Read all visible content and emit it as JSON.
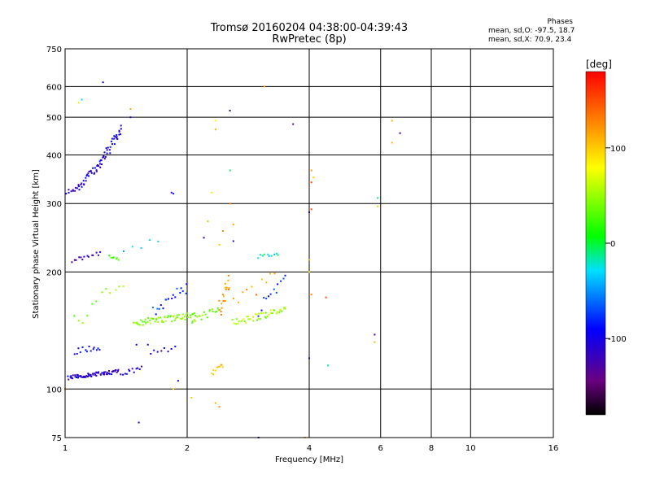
{
  "title": {
    "line1": "Tromsø 20160204 04:38:00-04:39:43",
    "line2": "RwPretec (8p)"
  },
  "phases": {
    "header": "Phases",
    "line_o": "mean, sd,O: -97.5, 18.7",
    "line_x": "mean, sd,X:  70.9, 23.4"
  },
  "chart_data": {
    "type": "scatter",
    "xlabel": "Frequency [MHz]",
    "ylabel": "Stationary phase Virtual Height [km]",
    "x_scale": "log2",
    "y_scale": "log",
    "xlim": [
      1,
      16
    ],
    "ylim": [
      75,
      750
    ],
    "x_ticks": [
      1,
      2,
      4,
      6,
      8,
      10,
      16
    ],
    "x_grid": [
      2,
      4,
      6,
      8,
      10
    ],
    "y_ticks": [
      75,
      100,
      200,
      300,
      400,
      500,
      600,
      750
    ],
    "y_grid": [
      100,
      200,
      300,
      400,
      500,
      600
    ],
    "grid": true,
    "colorbar": {
      "label": "[deg]",
      "range": [
        -180,
        180
      ],
      "ticks": [
        100,
        0,
        -100
      ]
    },
    "series": [
      {
        "traces": [
          {
            "f0": 1.02,
            "f1": 1.35,
            "h0": 107,
            "h1": 111,
            "n": 70,
            "phase": -110,
            "jit": 0.012
          },
          {
            "f0": 1.37,
            "f1": 1.55,
            "h0": 110,
            "h1": 113,
            "n": 12,
            "phase": -105,
            "jit": 0.015
          },
          {
            "f0": 1.01,
            "f1": 1.08,
            "h0": 320,
            "h1": 330,
            "n": 10,
            "phase": -110,
            "jit": 0.012
          },
          {
            "f0": 1.08,
            "f1": 1.22,
            "h0": 330,
            "h1": 380,
            "n": 30,
            "phase": -105,
            "jit": 0.025
          },
          {
            "f0": 1.22,
            "f1": 1.38,
            "h0": 380,
            "h1": 470,
            "n": 34,
            "phase": -100,
            "jit": 0.03
          },
          {
            "f0": 1.06,
            "f1": 1.22,
            "h0": 125,
            "h1": 128,
            "n": 14,
            "phase": -100,
            "jit": 0.018
          },
          {
            "f0": 1.04,
            "f1": 1.22,
            "h0": 213,
            "h1": 223,
            "n": 14,
            "phase": -115,
            "jit": 0.015
          },
          {
            "f0": 1.28,
            "f1": 1.36,
            "h0": 220,
            "h1": 216,
            "n": 7,
            "phase": 20,
            "jit": 0.012
          },
          {
            "f0": 1.62,
            "f1": 1.86,
            "h0": 125,
            "h1": 127,
            "n": 8,
            "phase": -110,
            "jit": 0.015
          },
          {
            "f0": 1.05,
            "f1": 1.4,
            "h0": 150,
            "h1": 185,
            "n": 12,
            "phase": 40,
            "jit": 0.06
          },
          {
            "f0": 1.48,
            "f1": 2.1,
            "h0": 148,
            "h1": 155,
            "n": 60,
            "phase": 45,
            "jit": 0.02
          },
          {
            "f0": 1.65,
            "f1": 2.0,
            "h0": 160,
            "h1": 185,
            "n": 18,
            "phase": -80,
            "jit": 0.04
          },
          {
            "f0": 2.05,
            "f1": 2.4,
            "h0": 150,
            "h1": 160,
            "n": 20,
            "phase": 40,
            "jit": 0.02
          },
          {
            "f0": 2.4,
            "f1": 2.55,
            "h0": 160,
            "h1": 190,
            "n": 20,
            "phase": 120,
            "jit": 0.05
          },
          {
            "f0": 2.3,
            "f1": 2.45,
            "h0": 110,
            "h1": 115,
            "n": 10,
            "phase": 100,
            "jit": 0.015
          },
          {
            "f0": 2.6,
            "f1": 3.5,
            "h0": 148,
            "h1": 160,
            "n": 45,
            "phase": 50,
            "jit": 0.02
          },
          {
            "f0": 3.0,
            "f1": 3.5,
            "h0": 160,
            "h1": 190,
            "n": 12,
            "phase": -80,
            "jit": 0.04
          },
          {
            "f0": 3.0,
            "f1": 3.35,
            "h0": 219,
            "h1": 222,
            "n": 10,
            "phase": -20,
            "jit": 0.01
          },
          {
            "f0": 2.6,
            "f1": 3.3,
            "h0": 165,
            "h1": 195,
            "n": 10,
            "phase": 120,
            "jit": 0.04
          },
          {
            "f0": 1.4,
            "f1": 1.7,
            "h0": 230,
            "h1": 240,
            "n": 5,
            "phase": -40,
            "jit": 0.02
          }
        ],
        "points": [
          [
            1.24,
            615,
            -110
          ],
          [
            1.1,
            555,
            -30
          ],
          [
            1.08,
            545,
            90
          ],
          [
            1.45,
            525,
            115
          ],
          [
            1.45,
            500,
            -110
          ],
          [
            2.35,
            490,
            80
          ],
          [
            2.35,
            465,
            110
          ],
          [
            2.55,
            520,
            -120
          ],
          [
            3.65,
            480,
            -120
          ],
          [
            3.1,
            600,
            115
          ],
          [
            2.55,
            365,
            -10
          ],
          [
            2.3,
            320,
            90
          ],
          [
            1.83,
            320,
            -110
          ],
          [
            1.85,
            318,
            -80
          ],
          [
            2.55,
            300,
            130
          ],
          [
            2.6,
            265,
            110
          ],
          [
            2.45,
            255,
            125
          ],
          [
            2.4,
            235,
            100
          ],
          [
            2.2,
            245,
            -120
          ],
          [
            2.6,
            240,
            -110
          ],
          [
            4.05,
            365,
            120
          ],
          [
            4.1,
            350,
            100
          ],
          [
            4.05,
            340,
            150
          ],
          [
            4.0,
            285,
            -110
          ],
          [
            4.05,
            290,
            150
          ],
          [
            5.9,
            310,
            -10
          ],
          [
            5.9,
            295,
            100
          ],
          [
            6.4,
            490,
            110
          ],
          [
            6.4,
            430,
            110
          ],
          [
            6.7,
            455,
            -120
          ],
          [
            4.0,
            215,
            110
          ],
          [
            4.0,
            200,
            90
          ],
          [
            4.05,
            175,
            125
          ],
          [
            4.4,
            172,
            150
          ],
          [
            4.45,
            115,
            -15
          ],
          [
            5.8,
            138,
            -120
          ],
          [
            5.8,
            132,
            110
          ],
          [
            4.0,
            120,
            -110
          ],
          [
            3.9,
            75,
            110
          ],
          [
            1.0,
            100,
            150
          ],
          [
            1.52,
            82,
            -110
          ],
          [
            1.9,
            105,
            -110
          ],
          [
            1.85,
            100,
            100
          ],
          [
            2.05,
            95,
            100
          ],
          [
            2.35,
            92,
            110
          ],
          [
            2.4,
            90,
            125
          ],
          [
            3.0,
            75,
            -120
          ],
          [
            2.25,
            270,
            110
          ],
          [
            1.6,
            130,
            -110
          ],
          [
            1.5,
            130,
            -100
          ]
        ]
      }
    ]
  }
}
